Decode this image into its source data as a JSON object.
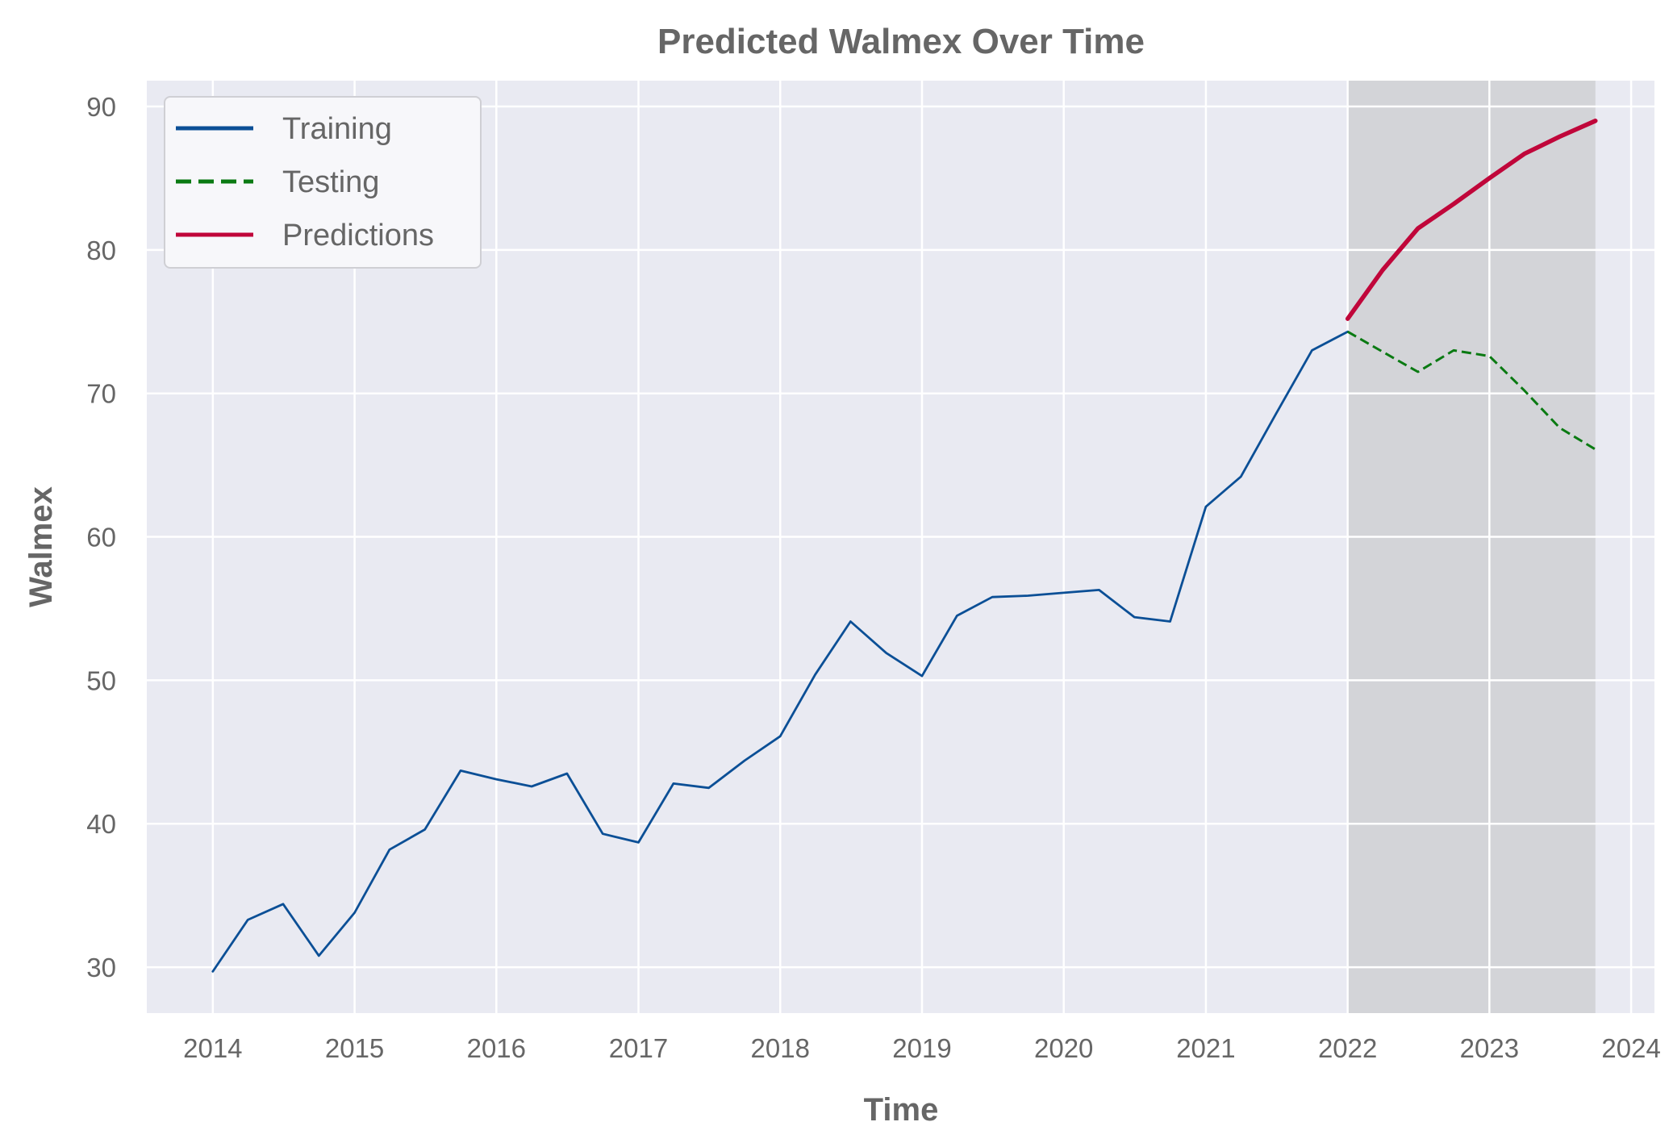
{
  "colors": {
    "background": "#ffffff",
    "plot_background": "#e9eaf2",
    "grid": "#ffffff",
    "shade": "#d3d4d8",
    "training": "#0b4f96",
    "testing": "#0a7a12",
    "predictions": "#c0063a",
    "text": "#666666"
  },
  "chart_data": {
    "type": "line",
    "title": "Predicted Walmex Over Time",
    "xlabel": "Time",
    "ylabel": "Walmex",
    "xlim": [
      "2013-07-15",
      "2024-03-01"
    ],
    "ylim": [
      26.8,
      91.8
    ],
    "x_ticks": [
      "2014",
      "2015",
      "2016",
      "2017",
      "2018",
      "2019",
      "2020",
      "2021",
      "2022",
      "2023",
      "2024"
    ],
    "y_ticks": [
      "30",
      "40",
      "50",
      "60",
      "70",
      "80",
      "90"
    ],
    "grid": true,
    "legend_position": "top-left",
    "shaded_region": [
      "2022-01-01",
      "2023-10-01"
    ],
    "series": [
      {
        "name": "Training",
        "style": "solid",
        "color": "#0b4f96",
        "x": [
          "2014-01-01",
          "2014-04-01",
          "2014-07-01",
          "2014-10-01",
          "2015-01-01",
          "2015-04-01",
          "2015-07-01",
          "2015-10-01",
          "2016-01-01",
          "2016-04-01",
          "2016-07-01",
          "2016-10-01",
          "2017-01-01",
          "2017-04-01",
          "2017-07-01",
          "2017-10-01",
          "2018-01-01",
          "2018-04-01",
          "2018-07-01",
          "2018-10-01",
          "2019-01-01",
          "2019-04-01",
          "2019-07-01",
          "2019-10-01",
          "2020-01-01",
          "2020-04-01",
          "2020-07-01",
          "2020-10-01",
          "2021-01-01",
          "2021-04-01",
          "2021-07-01",
          "2021-10-01",
          "2022-01-01"
        ],
        "values": [
          29.7,
          33.3,
          34.4,
          30.8,
          33.8,
          38.2,
          39.6,
          43.7,
          43.1,
          42.6,
          43.5,
          39.3,
          38.7,
          42.8,
          42.5,
          44.4,
          46.1,
          50.4,
          54.1,
          51.9,
          50.3,
          54.5,
          55.8,
          55.9,
          56.1,
          56.3,
          54.4,
          54.1,
          62.1,
          64.2,
          68.6,
          73.0,
          74.3
        ]
      },
      {
        "name": "Testing",
        "style": "dashed",
        "color": "#0a7a12",
        "x": [
          "2022-01-01",
          "2022-04-01",
          "2022-07-01",
          "2022-10-01",
          "2023-01-01",
          "2023-04-01",
          "2023-07-01",
          "2023-10-01"
        ],
        "values": [
          74.3,
          72.9,
          71.5,
          73.0,
          72.6,
          70.2,
          67.6,
          66.1
        ]
      },
      {
        "name": "Predictions",
        "style": "solid",
        "color": "#c0063a",
        "x": [
          "2022-01-01",
          "2022-04-01",
          "2022-07-01",
          "2022-10-01",
          "2023-01-01",
          "2023-04-01",
          "2023-07-01",
          "2023-10-01"
        ],
        "values": [
          75.2,
          78.6,
          81.5,
          83.2,
          85.0,
          86.7,
          87.9,
          89.0
        ]
      }
    ]
  }
}
